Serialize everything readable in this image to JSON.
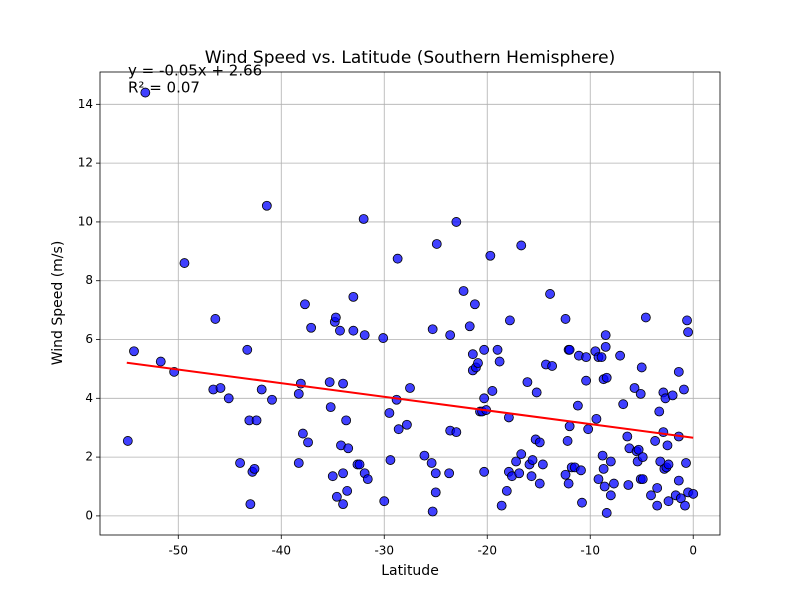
{
  "chart_data": {
    "type": "scatter",
    "title": "Wind Speed vs. Latitude (Southern Hemisphere)",
    "xlabel": "Latitude",
    "ylabel": "Wind Speed (m/s)",
    "annotations": [
      "y = -0.05x + 2.66",
      "R² = 0.07"
    ],
    "color": "#0000ff",
    "edgecolor": "#000000",
    "grid": true,
    "xlim": [
      -57.6,
      2.6
    ],
    "ylim": [
      -0.65,
      15.1
    ],
    "xticks": [
      -50,
      -40,
      -30,
      -20,
      -10,
      0
    ],
    "yticks": [
      0,
      2,
      4,
      6,
      8,
      10,
      12,
      14
    ],
    "fit_line": {
      "color": "#ff0000",
      "x": [
        -55,
        0
      ],
      "values": [
        5.21,
        2.66
      ]
    },
    "x": [
      -54.9,
      -54.3,
      -53.2,
      -51.7,
      -50.4,
      -49.4,
      -46.4,
      -46.6,
      -45.9,
      -45.1,
      -44.0,
      -43.3,
      -43.1,
      -43.0,
      -42.8,
      -42.6,
      -42.4,
      -41.9,
      -41.4,
      -40.9,
      -38.3,
      -38.3,
      -38.1,
      -37.9,
      -37.7,
      -37.4,
      -37.1,
      -35.3,
      -35.2,
      -35.0,
      -34.8,
      -34.7,
      -34.6,
      -34.3,
      -34.2,
      -34.0,
      -34.0,
      -34.0,
      -33.7,
      -33.6,
      -33.5,
      -33.0,
      -33.0,
      -32.6,
      -32.4,
      -32.0,
      -31.9,
      -31.9,
      -31.6,
      -30.1,
      -30.0,
      -29.5,
      -29.4,
      -28.8,
      -28.7,
      -28.6,
      -27.8,
      -27.5,
      -26.1,
      -25.3,
      -25.4,
      -25.3,
      -25.0,
      -25.0,
      -24.9,
      -23.7,
      -23.6,
      -23.6,
      -23.0,
      -23.0,
      -22.3,
      -21.7,
      -21.4,
      -21.4,
      -21.2,
      -21.1,
      -20.9,
      -20.7,
      -20.5,
      -20.3,
      -20.3,
      -20.3,
      -20.1,
      -19.7,
      -19.5,
      -19.0,
      -18.8,
      -18.6,
      -18.1,
      -17.9,
      -17.9,
      -17.8,
      -17.6,
      -17.2,
      -16.9,
      -16.7,
      -16.7,
      -16.1,
      -15.9,
      -15.7,
      -15.6,
      -15.3,
      -15.2,
      -14.9,
      -14.9,
      -14.6,
      -14.3,
      -13.9,
      -13.7,
      -12.4,
      -12.4,
      -12.2,
      -12.1,
      -12.0,
      -12.1,
      -12.0,
      -11.8,
      -11.5,
      -11.2,
      -11.1,
      -10.9,
      -10.8,
      -10.4,
      -10.4,
      -10.2,
      -9.5,
      -9.4,
      -9.2,
      -9.2,
      -8.9,
      -8.8,
      -8.7,
      -8.7,
      -8.6,
      -8.5,
      -8.5,
      -8.4,
      -8.4,
      -8.0,
      -8.0,
      -7.7,
      -7.1,
      -6.8,
      -6.4,
      -6.3,
      -6.2,
      -5.7,
      -5.5,
      -5.4,
      -5.3,
      -5.1,
      -5.0,
      -5.1,
      -4.9,
      -4.9,
      -4.6,
      -4.1,
      -3.7,
      -3.5,
      -3.5,
      -3.3,
      -3.2,
      -2.9,
      -2.9,
      -2.8,
      -2.7,
      -2.6,
      -2.5,
      -2.4,
      -2.4,
      -2.0,
      -1.7,
      -1.4,
      -1.4,
      -1.4,
      -1.2,
      -0.9,
      -0.8,
      -0.7,
      -0.6,
      -0.5,
      -0.5,
      0.0
    ],
    "values": [
      2.55,
      5.6,
      14.4,
      5.25,
      4.9,
      8.6,
      6.7,
      4.3,
      4.35,
      4.0,
      1.8,
      5.65,
      3.25,
      0.4,
      1.5,
      1.6,
      3.25,
      4.3,
      10.55,
      3.95,
      1.8,
      4.15,
      4.5,
      2.8,
      7.2,
      2.5,
      6.4,
      4.55,
      3.7,
      1.35,
      6.6,
      6.75,
      0.65,
      6.3,
      2.4,
      4.5,
      1.45,
      0.4,
      3.25,
      0.85,
      2.3,
      7.45,
      6.3,
      1.75,
      1.75,
      10.1,
      6.15,
      1.45,
      1.25,
      6.05,
      0.5,
      3.5,
      1.9,
      3.95,
      8.75,
      2.95,
      3.1,
      4.35,
      2.05,
      0.15,
      1.8,
      6.35,
      1.45,
      0.8,
      9.25,
      1.45,
      2.9,
      6.15,
      2.85,
      10.0,
      7.65,
      6.45,
      5.5,
      4.95,
      7.2,
      5.05,
      5.2,
      3.55,
      3.55,
      5.65,
      4.0,
      1.5,
      3.6,
      8.85,
      4.25,
      5.65,
      5.25,
      0.35,
      0.85,
      1.5,
      3.35,
      6.65,
      1.35,
      1.85,
      1.45,
      9.2,
      2.1,
      4.55,
      1.75,
      1.35,
      1.9,
      2.6,
      4.2,
      1.1,
      2.5,
      1.75,
      5.15,
      7.55,
      5.1,
      1.4,
      6.7,
      2.55,
      5.65,
      5.65,
      1.1,
      3.05,
      1.65,
      1.65,
      3.75,
      5.45,
      1.55,
      0.45,
      5.4,
      4.6,
      2.95,
      5.6,
      3.3,
      5.4,
      1.25,
      5.4,
      2.05,
      4.65,
      1.6,
      1.0,
      5.75,
      6.15,
      4.7,
      0.1,
      0.7,
      1.85,
      1.1,
      5.45,
      3.8,
      2.7,
      1.05,
      2.3,
      4.35,
      2.2,
      1.85,
      2.25,
      4.15,
      5.05,
      1.25,
      2.0,
      1.25,
      6.75,
      0.7,
      2.55,
      0.95,
      0.35,
      3.55,
      1.85,
      2.85,
      4.2,
      1.6,
      4.0,
      1.65,
      2.4,
      1.75,
      0.5,
      4.1,
      0.7,
      4.9,
      2.7,
      1.2,
      0.6,
      4.3,
      0.35,
      1.8,
      6.65,
      6.25,
      0.8,
      0.75
    ]
  }
}
